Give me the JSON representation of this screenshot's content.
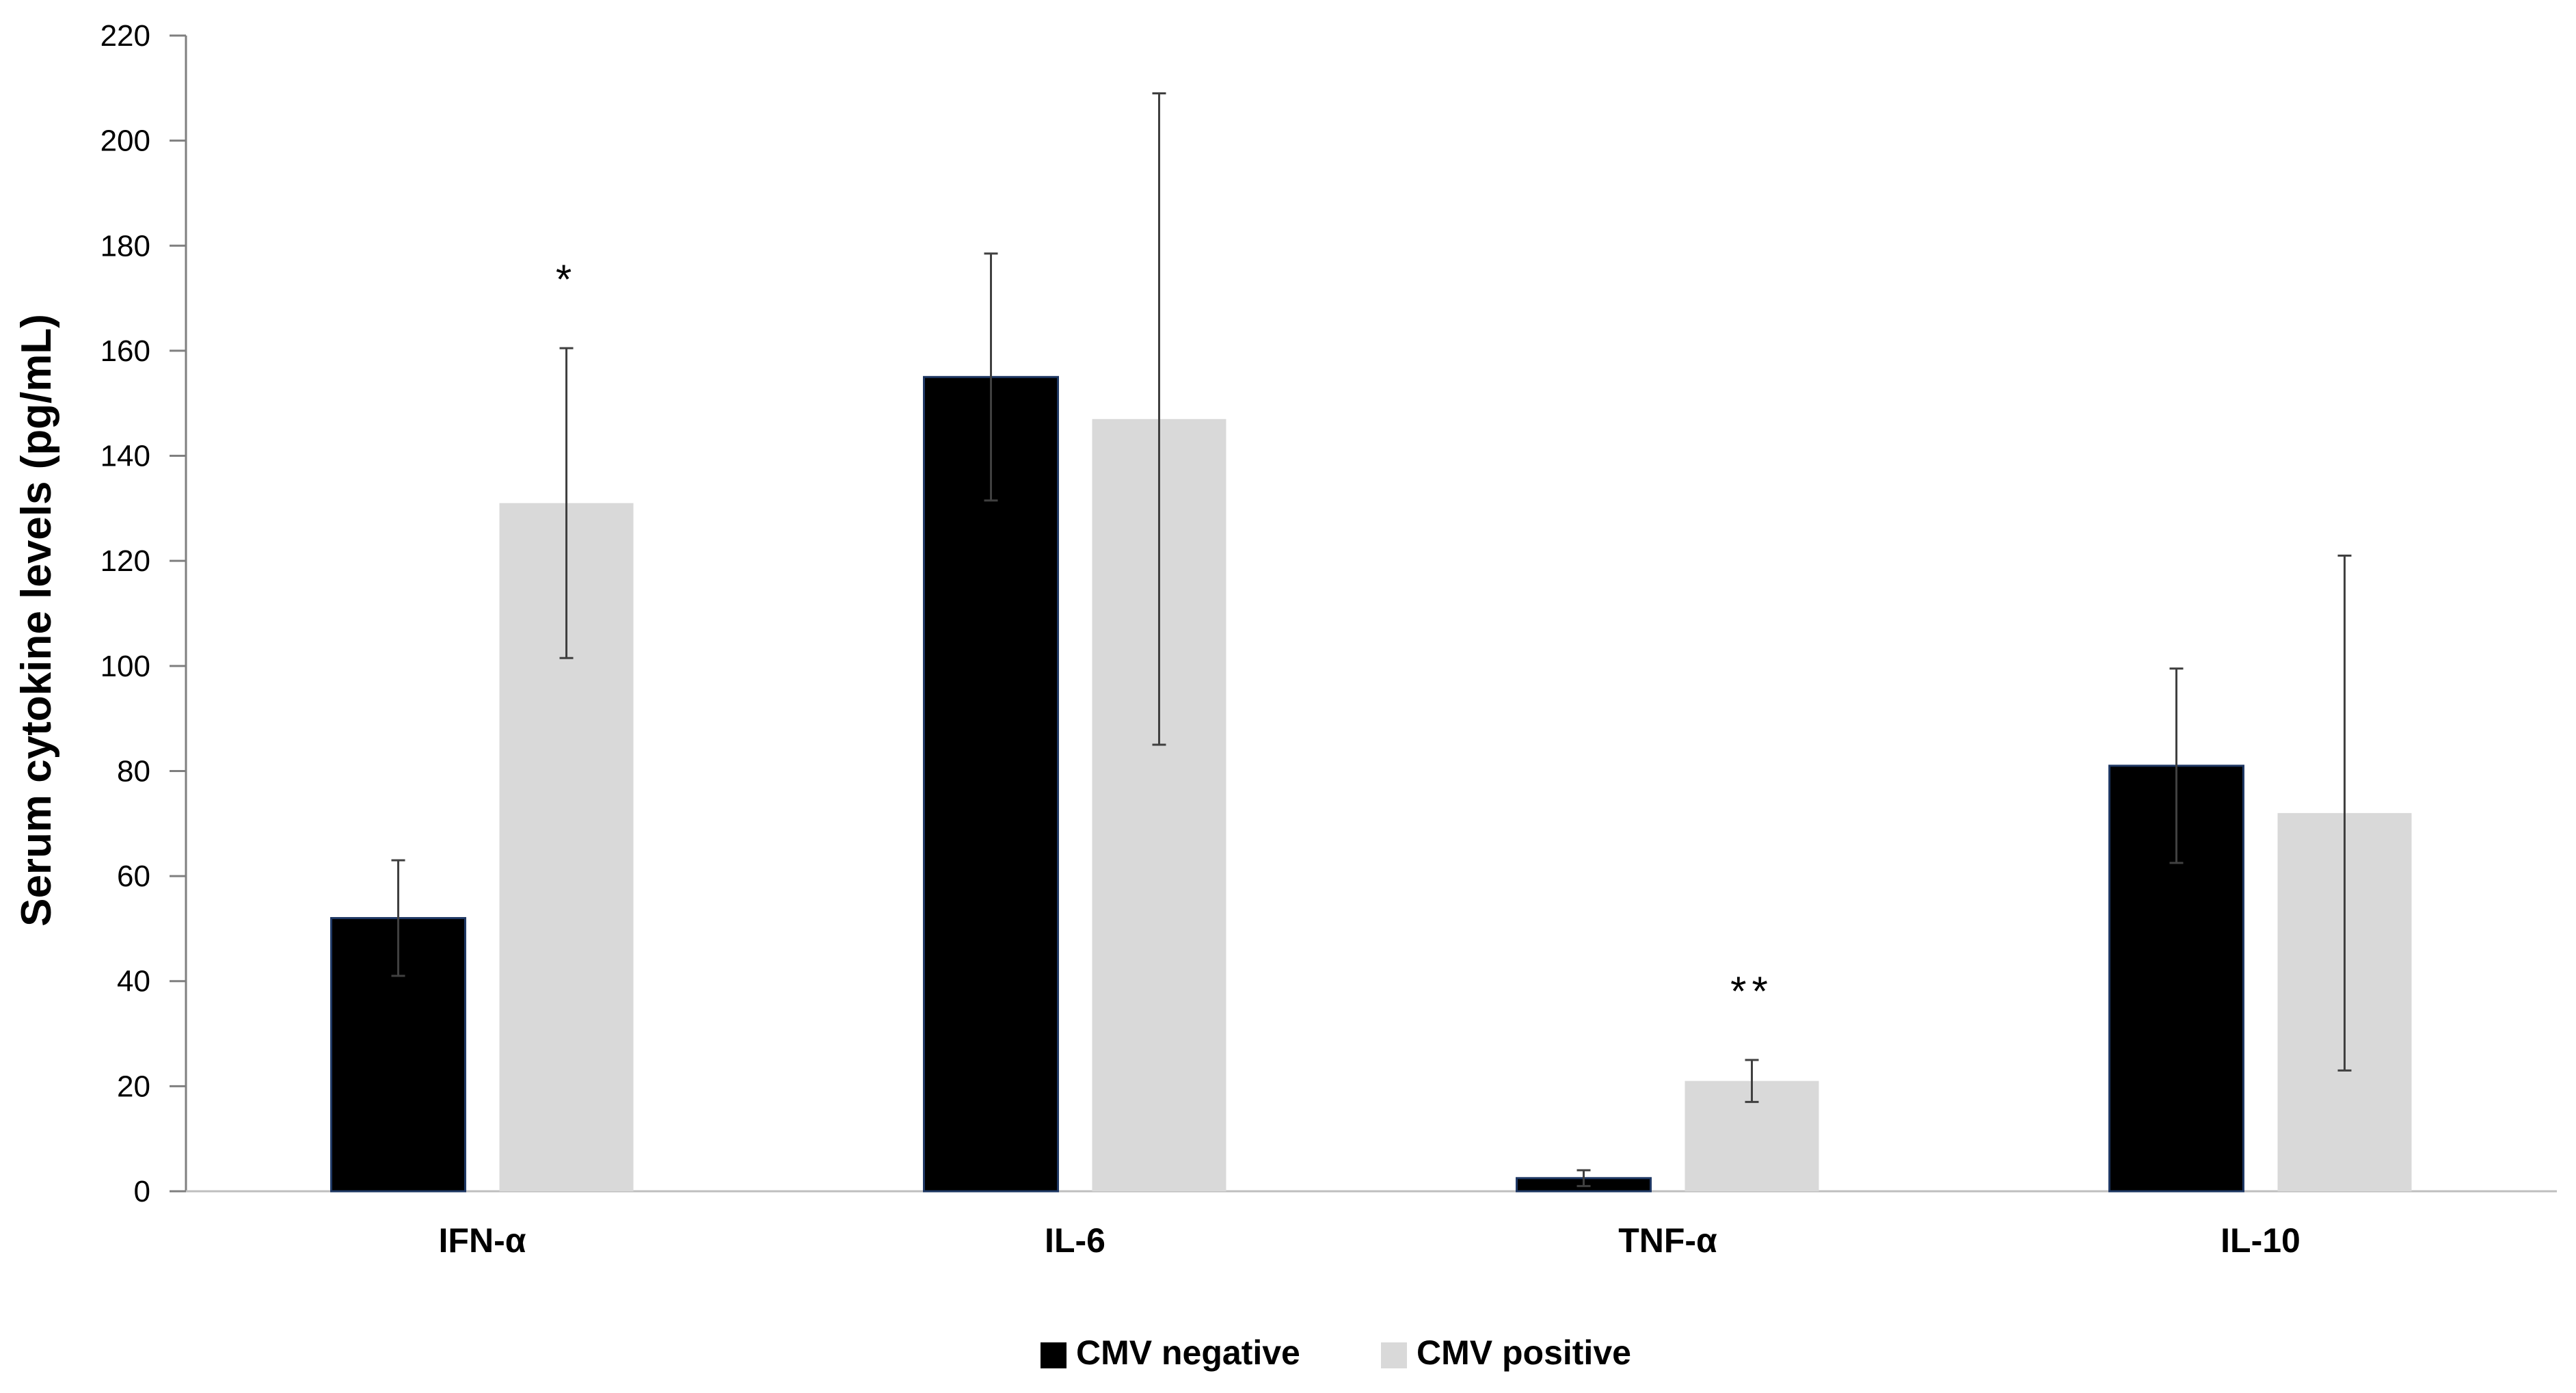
{
  "chart_data": {
    "type": "bar",
    "ylabel": "Serum cytokine levels (pg/mL)",
    "xlabel": "",
    "ylim": [
      0,
      220
    ],
    "yticks": [
      "0",
      "20",
      "40",
      "60",
      "80",
      "100",
      "120",
      "140",
      "160",
      "180",
      "200",
      "220"
    ],
    "categories": [
      "IFN-α",
      "IL-6",
      "TNF-α",
      "IL-10"
    ],
    "series": [
      {
        "name": "CMV negative",
        "color": "#000000",
        "values": [
          52,
          155,
          2.5,
          81
        ],
        "errors": [
          11,
          23.5,
          1.5,
          18.5
        ]
      },
      {
        "name": "CMV positive",
        "color": "#d9d9d9",
        "values": [
          131,
          147,
          21,
          72
        ],
        "errors": [
          29.5,
          62,
          4,
          49
        ]
      }
    ],
    "annotations": [
      {
        "category": "IFN-α",
        "series": "CMV positive",
        "text": "*"
      },
      {
        "category": "TNF-α",
        "series": "CMV positive",
        "text": "**"
      }
    ],
    "legend_position": "bottom",
    "grid": false
  }
}
